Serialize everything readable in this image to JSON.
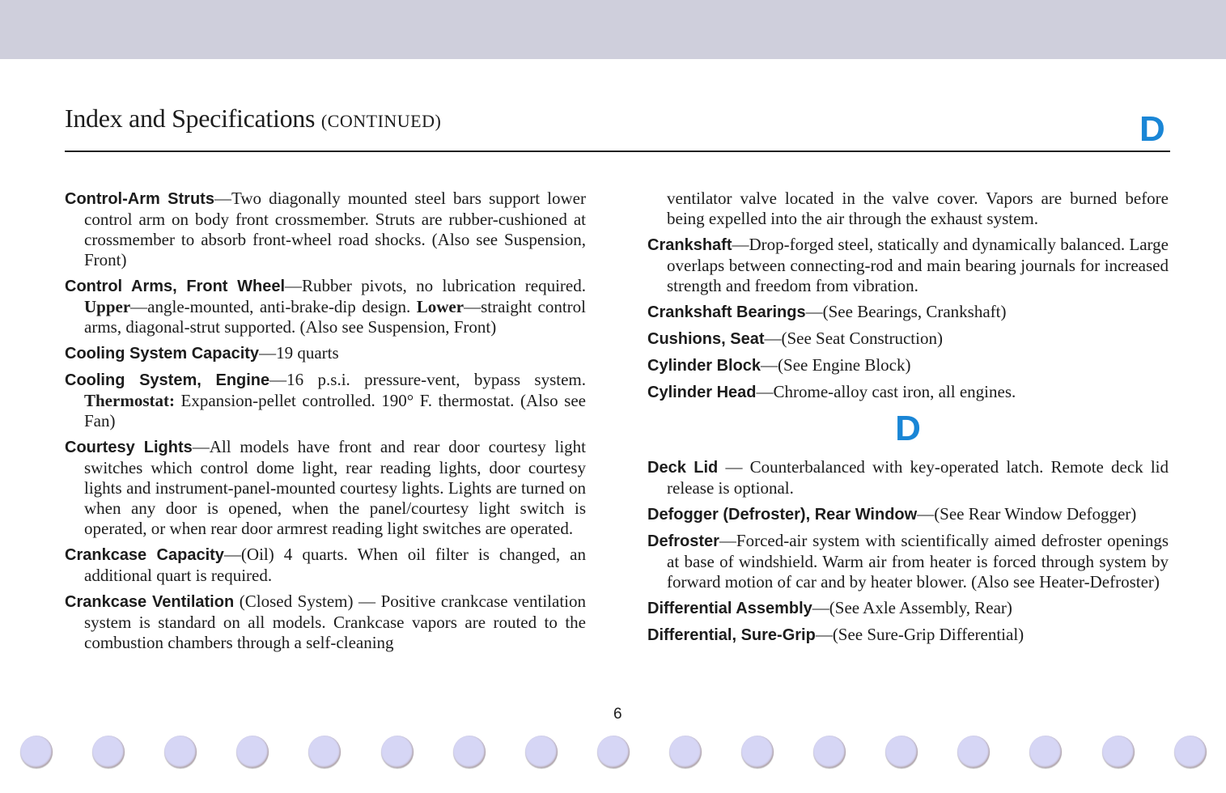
{
  "header": {
    "title": "Index and Specifications",
    "title_suffix": "(CONTINUED)",
    "section_letter": "D"
  },
  "colors": {
    "accent": "#1a86d6",
    "band": "#cfcfdc",
    "holes": "#d6d6f5"
  },
  "left_column": [
    {
      "term": "Control-Arm Struts",
      "body": [
        {
          "t": "—Two diagonally mounted steel bars support lower control arm on body front crossmember. Struts are rubber-cushioned at crossmember to absorb front-wheel road shocks. (Also see Suspension, Front)"
        }
      ]
    },
    {
      "term": "Control Arms, Front Wheel",
      "body": [
        {
          "t": "—Rubber pivots, no lubrication required. "
        },
        {
          "t": "Upper",
          "b": true
        },
        {
          "t": "—angle-mounted, anti-brake-dip design. "
        },
        {
          "t": "Lower",
          "b": true
        },
        {
          "t": "—straight control arms, diagonal-strut supported. (Also see Suspension, Front)"
        }
      ]
    },
    {
      "term": "Cooling System Capacity",
      "body": [
        {
          "t": "—19 quarts"
        }
      ]
    },
    {
      "term": "Cooling System, Engine",
      "body": [
        {
          "t": "—16 p.s.i. pressure-vent, bypass system. "
        },
        {
          "t": "Thermostat:",
          "b": true
        },
        {
          "t": " Expansion-pellet controlled. 190° F. thermostat. (Also see Fan)"
        }
      ]
    },
    {
      "term": "Courtesy Lights",
      "body": [
        {
          "t": "—All models have front and rear door courtesy light switches which control dome light, rear reading lights, door courtesy lights and instrument-panel-mounted courtesy lights. Lights are turned on when any door is opened, when the panel/courtesy light switch is operated, or when rear door armrest reading light switches are operated."
        }
      ]
    },
    {
      "term": "Crankcase Capacity",
      "body": [
        {
          "t": "—(Oil) 4 quarts. When oil filter is changed, an additional quart is required."
        }
      ]
    },
    {
      "term": "Crankcase Ventilation",
      "body": [
        {
          "t": " (Closed System) — Positive crankcase ventilation system is standard on all models. Crankcase vapors are routed to the combustion chambers through a self-cleaning"
        }
      ]
    }
  ],
  "right_column_continuation": "ventilator valve located in the valve cover. Vapors are burned before being expelled into the air through the exhaust system.",
  "right_column": [
    {
      "term": "Crankshaft",
      "body": [
        {
          "t": "—Drop-forged steel, statically and dynamically balanced. Large overlaps between connecting-rod and main bearing journals for increased strength and freedom from vibration."
        }
      ]
    },
    {
      "term": "Crankshaft Bearings",
      "body": [
        {
          "t": "—(See Bearings, Crankshaft)"
        }
      ]
    },
    {
      "term": "Cushions, Seat",
      "body": [
        {
          "t": "—(See Seat Construction)"
        }
      ]
    },
    {
      "term": "Cylinder Block",
      "body": [
        {
          "t": "—(See Engine Block)"
        }
      ]
    },
    {
      "term": "Cylinder Head",
      "body": [
        {
          "t": "—Chrome-alloy cast iron, all engines."
        }
      ]
    }
  ],
  "section_d_heading": "D",
  "right_column_d": [
    {
      "term": "Deck Lid",
      "body": [
        {
          "t": " — Counterbalanced with key-operated latch. Remote deck lid release is optional."
        }
      ]
    },
    {
      "term": "Defogger (Defroster), Rear Window",
      "body": [
        {
          "t": "—(See Rear Window Defogger)"
        }
      ]
    },
    {
      "term": "Defroster",
      "body": [
        {
          "t": "—Forced-air system with scientifically aimed defroster openings at base of windshield. Warm air from heater is forced through system by forward motion of car and by heater blower. (Also see Heater-Defroster)"
        }
      ]
    },
    {
      "term": "Differential Assembly",
      "body": [
        {
          "t": "—(See Axle Assembly, Rear)"
        }
      ]
    },
    {
      "term": "Differential, Sure-Grip",
      "body": [
        {
          "t": "—(See Sure-Grip Differential)"
        }
      ]
    }
  ],
  "page_number": "6"
}
